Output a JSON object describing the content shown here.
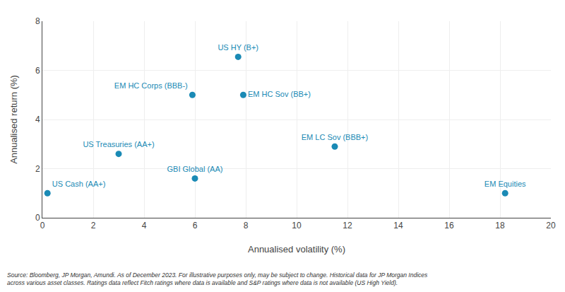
{
  "chart_data": {
    "type": "scatter",
    "labels": [
      "US Cash (AA+)",
      "US Treasuries (AA+)",
      "GBI Global (AA)",
      "EM HC Corps (BBB-)",
      "US HY (B+)",
      "EM HC Sov (BB+)",
      "EM LC Sov (BBB+)",
      "EM Equities"
    ],
    "x": [
      0.2,
      3.0,
      6.0,
      5.9,
      7.7,
      7.9,
      11.5,
      18.2
    ],
    "values": [
      1.0,
      2.6,
      1.6,
      5.0,
      6.55,
      5.0,
      2.9,
      1.0
    ],
    "color": "#1a8ab5",
    "marker": "circle",
    "xlabel": "Annualised volatility (%)",
    "ylabel": "Annualised return (%)",
    "xlim": [
      0,
      20
    ],
    "ylim": [
      0,
      8
    ],
    "xticks": [
      0,
      2,
      4,
      6,
      8,
      10,
      12,
      14,
      16,
      18,
      20
    ],
    "yticks": [
      0,
      2,
      4,
      6,
      8
    ],
    "grid": true,
    "annotations": [
      "Source: Bloomberg, JP Morgan, Amundi. As of December 2023. For illustrative purposes only, may be subject to change. Historical data for JP Morgan Indices\nacross various asset classes. Ratings data reflect Fitch ratings where data is available and S&P ratings where data is not available (US High Yield)."
    ]
  }
}
